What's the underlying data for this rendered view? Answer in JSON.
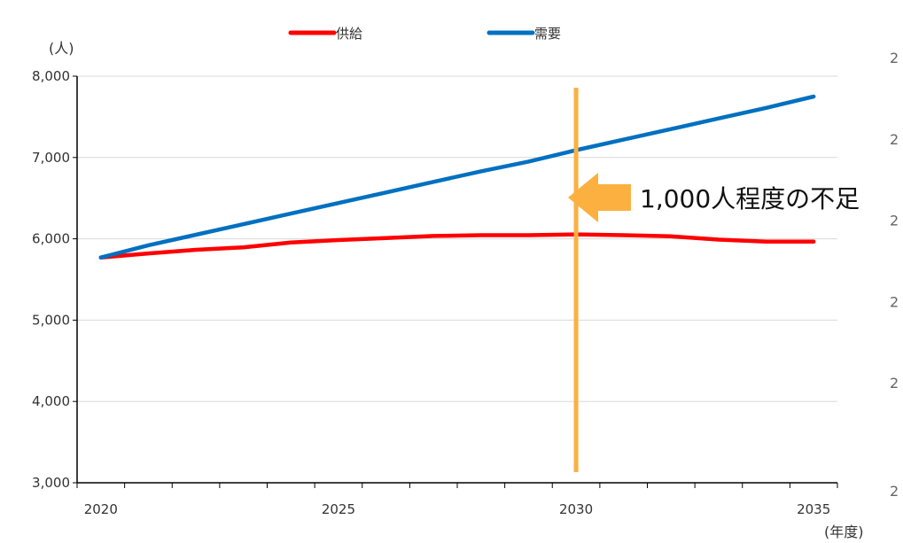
{
  "chart_data": {
    "type": "line",
    "x": [
      2020,
      2021,
      2022,
      2023,
      2024,
      2025,
      2026,
      2027,
      2028,
      2029,
      2030,
      2031,
      2032,
      2033,
      2034,
      2035
    ],
    "series": [
      {
        "name": "供給",
        "color": "#ff0000",
        "values": [
          5770,
          5820,
          5865,
          5895,
          5955,
          5985,
          6010,
          6035,
          6045,
          6045,
          6055,
          6045,
          6030,
          5990,
          5965,
          5965
        ]
      },
      {
        "name": "需要",
        "color": "#0070c0",
        "values": [
          5770,
          5920,
          6050,
          6180,
          6310,
          6440,
          6570,
          6700,
          6830,
          6950,
          7090,
          7220,
          7350,
          7480,
          7610,
          7750
        ]
      }
    ],
    "xticks": [
      "2020",
      "2025",
      "2030",
      "2035"
    ],
    "yticks": [
      "3,000",
      "4,000",
      "5,000",
      "6,000",
      "7,000",
      "8,000"
    ],
    "ylim": [
      3000,
      8000
    ],
    "xlim": [
      2019.5,
      2035.5
    ],
    "y_unit": "(人)",
    "x_unit": "(年度)",
    "grid": "horizontal",
    "legend_placement": "top",
    "annotation": {
      "text": "1,000人程度の不足",
      "marker_year": 2030,
      "marker_color": "#fbb040",
      "arrow_color": "#fbb040"
    },
    "secondary_axis_labels": [
      "2",
      "2",
      "2",
      "2",
      "2",
      "2"
    ]
  }
}
